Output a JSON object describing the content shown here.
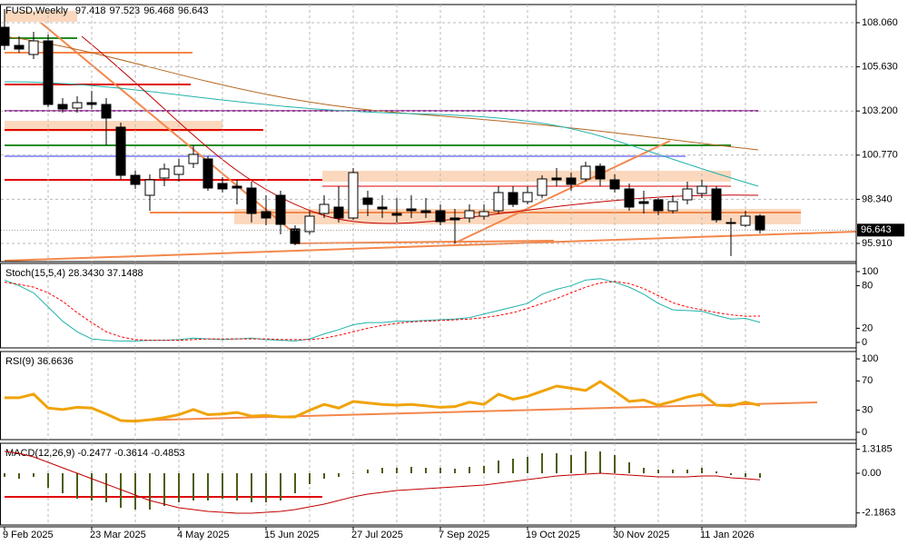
{
  "chart_data": [
    {
      "type": "candlestick",
      "title": "FUSD,Weekly",
      "categories": [
        "9 Feb 2025",
        null,
        null,
        null,
        null,
        null,
        "23 Mar 2025",
        null,
        null,
        null,
        null,
        null,
        "4 May 2025",
        null,
        null,
        null,
        null,
        null,
        "15 Jun 2025",
        null,
        null,
        null,
        null,
        null,
        "27 Jul 2025",
        null,
        null,
        null,
        null,
        null,
        "7 Sep 2025",
        null,
        null,
        null,
        null,
        null,
        "19 Oct 2025",
        null,
        null,
        null,
        null,
        null,
        "30 Nov 2025",
        null,
        null,
        null,
        null,
        null,
        "11 Jan 2026",
        null,
        null,
        null,
        null
      ],
      "open": [
        107.81,
        106.81,
        106.31,
        107.06,
        103.56,
        103.36,
        103.66,
        103.56,
        102.31,
        99.66,
        98.56,
        99.51,
        99.71,
        100.31,
        100.56,
        99.21,
        99.06,
        98.96,
        97.66,
        98.56,
        96.71,
        96.56,
        97.56,
        97.91,
        97.31,
        98.41,
        97.91,
        97.56,
        97.81,
        97.71,
        97.71,
        97.31,
        97.31,
        97.41,
        97.71,
        98.71,
        98.21,
        98.56,
        99.51,
        99.51,
        99.46,
        100.16,
        99.41,
        98.91,
        98.21,
        98.31,
        97.71,
        98.31,
        98.66,
        98.91,
        97.06,
        96.91,
        97.418
      ],
      "high": [
        108.81,
        107.31,
        107.56,
        107.41,
        103.91,
        104.01,
        104.31,
        103.91,
        102.56,
        99.91,
        99.71,
        100.31,
        100.56,
        101.31,
        100.71,
        99.56,
        99.41,
        99.31,
        98.56,
        98.81,
        96.91,
        97.71,
        98.56,
        99.06,
        100.06,
        98.81,
        98.56,
        98.41,
        98.56,
        98.41,
        98.06,
        97.81,
        98.06,
        98.06,
        99.06,
        99.06,
        99.06,
        99.66,
        100.06,
        99.81,
        100.41,
        100.31,
        99.71,
        99.21,
        98.81,
        98.41,
        98.56,
        99.31,
        99.41,
        99.06,
        97.31,
        97.71,
        97.523
      ],
      "low": [
        106.56,
        106.41,
        106.06,
        103.41,
        103.11,
        103.11,
        103.31,
        101.31,
        99.41,
        98.91,
        97.71,
        99.06,
        99.31,
        100.06,
        98.81,
        98.71,
        98.06,
        97.06,
        96.91,
        96.41,
        95.81,
        96.41,
        97.31,
        97.06,
        97.21,
        97.41,
        97.31,
        97.06,
        97.31,
        97.31,
        96.91,
        95.91,
        97.06,
        97.21,
        97.56,
        97.91,
        98.06,
        98.41,
        99.06,
        98.81,
        99.31,
        99.06,
        98.71,
        97.71,
        97.56,
        97.46,
        97.56,
        98.06,
        98.41,
        97.06,
        95.21,
        96.81,
        96.468
      ],
      "close": [
        106.81,
        106.61,
        107.06,
        103.56,
        103.31,
        103.66,
        103.56,
        102.81,
        99.66,
        99.16,
        99.41,
        100.01,
        100.16,
        100.81,
        98.96,
        98.91,
        98.96,
        97.56,
        97.31,
        96.96,
        95.91,
        97.41,
        98.06,
        97.31,
        99.81,
        98.06,
        97.81,
        97.46,
        97.71,
        97.61,
        97.11,
        97.21,
        97.71,
        97.66,
        98.71,
        98.06,
        98.71,
        99.46,
        99.41,
        99.16,
        100.16,
        99.46,
        98.91,
        97.91,
        98.11,
        97.71,
        98.21,
        98.91,
        99.06,
        97.21,
        97.01,
        97.41,
        96.643
      ],
      "up_color": "#ffffff",
      "down_color": "#000000",
      "ylim": [
        94.91,
        109.06
      ],
      "yticks": [
        {
          "value": 108.06,
          "label": "108.060"
        },
        {
          "value": 105.63,
          "label": "105.630"
        },
        {
          "value": 103.2,
          "label": "103.200"
        },
        {
          "value": 100.77,
          "label": "100.770"
        },
        {
          "value": 98.34,
          "label": "98.340"
        },
        {
          "value": 95.91,
          "label": "95.910"
        }
      ],
      "grid": true
    },
    {
      "type": "line",
      "title": "Stoch(15,5,4) 28.3430 37.1488",
      "series": [
        {
          "color": "#20b2aa",
          "values": [
            88,
            80,
            70,
            50,
            30,
            15,
            5,
            3,
            2,
            2,
            3,
            3,
            4,
            6,
            5,
            4,
            5,
            6,
            4,
            3,
            2,
            5,
            12,
            18,
            25,
            28,
            28,
            30,
            30,
            31,
            32,
            33,
            35,
            40,
            45,
            50,
            55,
            68,
            75,
            80,
            88,
            90,
            85,
            78,
            68,
            55,
            46,
            45,
            44,
            38,
            33,
            34,
            28.343
          ]
        },
        {
          "color": "#ff0000",
          "dashed": true,
          "values": [
            85,
            82,
            78,
            70,
            58,
            42,
            28,
            15,
            8,
            4,
            3,
            3,
            3,
            4,
            5,
            5,
            5,
            5,
            5,
            4,
            4,
            4,
            6,
            10,
            15,
            20,
            24,
            27,
            29,
            30,
            31,
            32,
            33,
            35,
            38,
            42,
            48,
            55,
            62,
            70,
            78,
            84,
            86,
            83,
            76,
            66,
            56,
            50,
            46,
            42,
            39,
            37,
            37.1488
          ]
        }
      ],
      "ylim": [
        -7.7,
        111.5
      ],
      "yticks": [
        100,
        80,
        20,
        0
      ],
      "grid": false
    },
    {
      "type": "line",
      "title": "RSI(9) 36.6636",
      "series": [
        {
          "color": "#f0a30a",
          "width": 3,
          "values": [
            47,
            47,
            52,
            33,
            31,
            34,
            33,
            25,
            16,
            15,
            17,
            20,
            24,
            31,
            24,
            25,
            27,
            22,
            23,
            21,
            21,
            30,
            38,
            33,
            42,
            40,
            38,
            37,
            38,
            36,
            34,
            35,
            41,
            38,
            52,
            45,
            49,
            56,
            63,
            60,
            57,
            69,
            56,
            42,
            44,
            37,
            42,
            48,
            52,
            37,
            36,
            41,
            36.6636
          ]
        }
      ],
      "ylim": [
        -10,
        110
      ],
      "yticks": [
        100,
        70,
        30,
        0
      ],
      "grid": false
    },
    {
      "type": "bar",
      "title": "MACD(12,26,9) -0.2477 -0.3614 -0.4853",
      "series": [
        {
          "color": "#4b5d16",
          "values": [
            -0.2,
            -0.3,
            -0.2,
            -0.8,
            -1.1,
            -1.4,
            -1.5,
            -1.6,
            -1.9,
            -2.0,
            -2.0,
            -1.8,
            -1.6,
            -1.5,
            -1.5,
            -1.4,
            -1.5,
            -1.6,
            -1.6,
            -1.5,
            -1.1,
            -0.6,
            -0.3,
            -0.2,
            0.0,
            0.2,
            0.3,
            0.3,
            0.35,
            0.3,
            0.3,
            0.25,
            0.35,
            0.4,
            0.7,
            0.8,
            0.9,
            1.1,
            1.1,
            1.0,
            1.2,
            1.2,
            1.0,
            0.6,
            0.3,
            0.2,
            0.2,
            0.2,
            0.3,
            0.1,
            -0.1,
            -0.2,
            -0.2477
          ]
        },
        {
          "type": "line",
          "color": "#c00000",
          "values": [
            1.2,
            1.1,
            0.9,
            0.6,
            0.3,
            0.0,
            -0.3,
            -0.6,
            -0.9,
            -1.2,
            -1.5,
            -1.7,
            -1.9,
            -2.0,
            -2.1,
            -2.15,
            -2.2,
            -2.2,
            -2.15,
            -2.1,
            -2.0,
            -1.85,
            -1.7,
            -1.5,
            -1.3,
            -1.15,
            -1.05,
            -0.95,
            -0.9,
            -0.85,
            -0.8,
            -0.75,
            -0.7,
            -0.65,
            -0.55,
            -0.45,
            -0.35,
            -0.25,
            -0.15,
            -0.1,
            -0.05,
            0.0,
            -0.05,
            -0.1,
            -0.15,
            -0.2,
            -0.2,
            -0.2,
            -0.15,
            -0.15,
            -0.25,
            -0.3,
            -0.3614
          ]
        }
      ],
      "ylim": [
        -2.85,
        1.65
      ],
      "yticks": [
        1.3185,
        {
          "value": 0,
          "label": "0.00"
        },
        -2.1863
      ],
      "grid": false
    }
  ]
}
